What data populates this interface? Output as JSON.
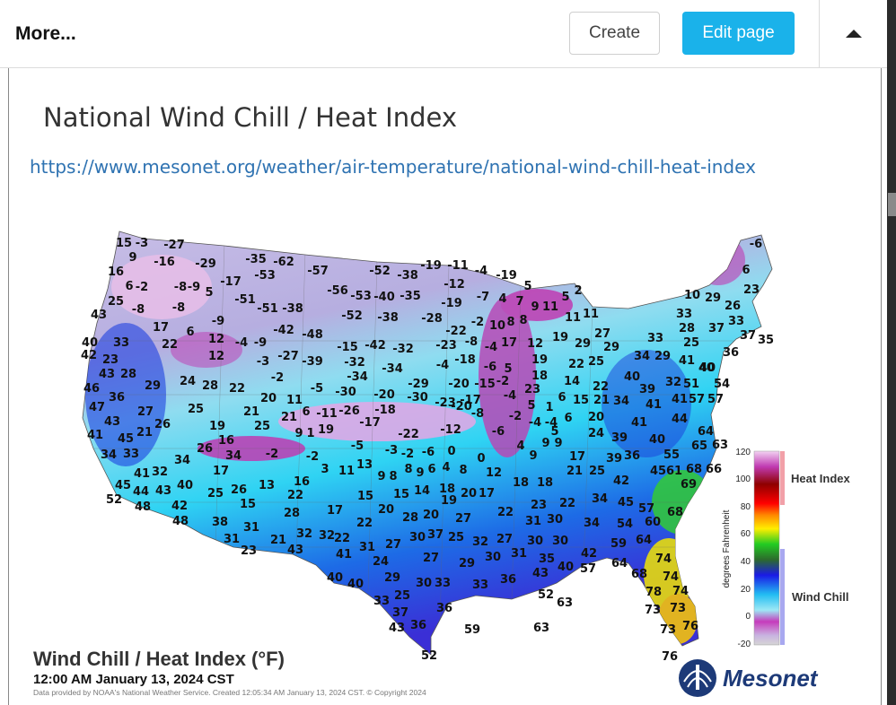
{
  "header": {
    "more_label": "More...",
    "create_label": "Create",
    "edit_label": "Edit page",
    "accent_color": "#1ab2ea"
  },
  "article": {
    "title": "National Wind Chill / Heat Index",
    "url": "https://www.mesonet.org/weather/air-temperature/national-wind-chill-heat-index"
  },
  "map": {
    "title": "Wind Chill / Heat Index (°F)",
    "timestamp": "12:00 AM January 13, 2024 CST",
    "credit": "Data provided by NOAA's National Weather Service. Created 12:05:34 AM January 13, 2024 CST. © Copyright 2024",
    "logo_text": "Mesonet",
    "legend": {
      "ticks": [
        "120",
        "100",
        "80",
        "60",
        "40",
        "20",
        "0",
        "-20"
      ],
      "axis_label": "degrees Fahrenheit",
      "heat_label": "Heat Index",
      "wind_label": "Wind Chill"
    },
    "labels": [
      [
        "15",
        138,
        270
      ],
      [
        "-3",
        158,
        270
      ],
      [
        "-27",
        194,
        272
      ],
      [
        "9",
        148,
        286
      ],
      [
        "-16",
        183,
        291
      ],
      [
        "-29",
        229,
        293
      ],
      [
        "-35",
        285,
        288
      ],
      [
        "-62",
        316,
        291
      ],
      [
        "-57",
        354,
        301
      ],
      [
        "-52",
        423,
        301
      ],
      [
        "-38",
        454,
        306
      ],
      [
        "-19",
        480,
        295
      ],
      [
        "-11",
        510,
        295
      ],
      [
        "-4",
        536,
        301
      ],
      [
        "-19",
        564,
        306
      ],
      [
        "-6",
        842,
        271
      ],
      [
        "16",
        129,
        302
      ],
      [
        "6",
        144,
        318
      ],
      [
        "-2",
        158,
        319
      ],
      [
        "-8",
        201,
        319
      ],
      [
        "-9",
        216,
        319
      ],
      [
        "5",
        233,
        325
      ],
      [
        "-17",
        257,
        313
      ],
      [
        "-53",
        295,
        306
      ],
      [
        "-56",
        376,
        323
      ],
      [
        "-53",
        402,
        329
      ],
      [
        "-40",
        428,
        330
      ],
      [
        "-35",
        457,
        329
      ],
      [
        "-12",
        506,
        316
      ],
      [
        "5",
        588,
        318
      ],
      [
        "2",
        644,
        323
      ],
      [
        "6",
        831,
        300
      ],
      [
        "23",
        837,
        322
      ],
      [
        "25",
        129,
        335
      ],
      [
        "-8",
        154,
        344
      ],
      [
        "-8",
        199,
        342
      ],
      [
        "-51",
        273,
        333
      ],
      [
        "-51",
        298,
        343
      ],
      [
        "-38",
        326,
        343
      ],
      [
        "-19",
        503,
        337
      ],
      [
        "-7",
        538,
        330
      ],
      [
        "4",
        560,
        332
      ],
      [
        "7",
        579,
        335
      ],
      [
        "9",
        596,
        341
      ],
      [
        "11",
        613,
        341
      ],
      [
        "5",
        630,
        330
      ],
      [
        "10",
        771,
        328
      ],
      [
        "29",
        794,
        331
      ],
      [
        "26",
        816,
        340
      ],
      [
        "43",
        110,
        350
      ],
      [
        "-9",
        243,
        357
      ],
      [
        "-52",
        392,
        351
      ],
      [
        "-38",
        432,
        353
      ],
      [
        "-28",
        481,
        354
      ],
      [
        "-2",
        532,
        358
      ],
      [
        "10",
        554,
        362
      ],
      [
        "8",
        569,
        358
      ],
      [
        "8",
        583,
        356
      ],
      [
        "11",
        638,
        353
      ],
      [
        "11",
        658,
        349
      ],
      [
        "33",
        762,
        349
      ],
      [
        "33",
        820,
        357
      ],
      [
        "17",
        179,
        364
      ],
      [
        "-42",
        316,
        367
      ],
      [
        "-48",
        348,
        372
      ],
      [
        "-22",
        508,
        368
      ],
      [
        "27",
        671,
        371
      ],
      [
        "28",
        765,
        365
      ],
      [
        "37",
        798,
        365
      ],
      [
        "37",
        833,
        373
      ],
      [
        "35",
        853,
        378
      ],
      [
        "6",
        212,
        369
      ],
      [
        "12",
        241,
        377
      ],
      [
        "40",
        100,
        381
      ],
      [
        "33",
        135,
        381
      ],
      [
        "22",
        189,
        383
      ],
      [
        "-4",
        269,
        381
      ],
      [
        "-9",
        290,
        381
      ],
      [
        "-15",
        387,
        386
      ],
      [
        "-42",
        418,
        384
      ],
      [
        "-32",
        449,
        388
      ],
      [
        "-23",
        497,
        384
      ],
      [
        "-8",
        525,
        380
      ],
      [
        "-4",
        547,
        386
      ],
      [
        "17",
        567,
        381
      ],
      [
        "12",
        596,
        382
      ],
      [
        "19",
        624,
        375
      ],
      [
        "29",
        649,
        382
      ],
      [
        "29",
        681,
        386
      ],
      [
        "33",
        730,
        376
      ],
      [
        "25",
        770,
        381
      ],
      [
        "42",
        99,
        395
      ],
      [
        "23",
        123,
        400
      ],
      [
        "12",
        241,
        396
      ],
      [
        "-3",
        293,
        402
      ],
      [
        "-27",
        321,
        396
      ],
      [
        "-39",
        348,
        402
      ],
      [
        "-32",
        395,
        403
      ],
      [
        "-4",
        493,
        406
      ],
      [
        "-18",
        518,
        400
      ],
      [
        "-6",
        546,
        408
      ],
      [
        "5",
        566,
        410
      ],
      [
        "19",
        601,
        400
      ],
      [
        "22",
        642,
        405
      ],
      [
        "25",
        664,
        402
      ],
      [
        "34",
        715,
        396
      ],
      [
        "29",
        738,
        396
      ],
      [
        "41",
        765,
        401
      ],
      [
        "36",
        814,
        392
      ],
      [
        "40",
        788,
        409
      ],
      [
        "43",
        119,
        416
      ],
      [
        "28",
        143,
        416
      ],
      [
        "-2",
        309,
        420
      ],
      [
        "-34",
        398,
        419
      ],
      [
        "-34",
        437,
        410
      ],
      [
        "-29",
        466,
        427
      ],
      [
        "-20",
        511,
        427
      ],
      [
        "-15",
        540,
        427
      ],
      [
        "-2",
        560,
        424
      ],
      [
        "18",
        601,
        418
      ],
      [
        "14",
        637,
        424
      ],
      [
        "22",
        669,
        430
      ],
      [
        "40",
        704,
        419
      ],
      [
        "39",
        721,
        433
      ],
      [
        "32",
        750,
        425
      ],
      [
        "51",
        770,
        427
      ],
      [
        "40",
        787,
        409
      ],
      [
        "54",
        804,
        427
      ],
      [
        "46",
        102,
        432
      ],
      [
        "29",
        170,
        429
      ],
      [
        "24",
        209,
        424
      ],
      [
        "28",
        234,
        429
      ],
      [
        "22",
        264,
        432
      ],
      [
        "-5",
        353,
        432
      ],
      [
        "-30",
        385,
        436
      ],
      [
        "-20",
        428,
        439
      ],
      [
        "-30",
        465,
        442
      ],
      [
        "-23",
        496,
        448
      ],
      [
        "-17",
        524,
        445
      ],
      [
        "-4",
        568,
        440
      ],
      [
        "23",
        593,
        433
      ],
      [
        "6",
        626,
        442
      ],
      [
        "15",
        647,
        445
      ],
      [
        "21",
        670,
        445
      ],
      [
        "34",
        692,
        446
      ],
      [
        "41",
        728,
        450
      ],
      [
        "41",
        757,
        444
      ],
      [
        "57",
        776,
        444
      ],
      [
        "57",
        797,
        444
      ],
      [
        "36",
        130,
        442
      ],
      [
        "20",
        299,
        443
      ],
      [
        "11",
        328,
        445
      ],
      [
        "-26",
        389,
        457
      ],
      [
        "-18",
        429,
        456
      ],
      [
        "-20",
        514,
        452
      ],
      [
        "-8",
        532,
        460
      ],
      [
        "5",
        592,
        451
      ],
      [
        "1",
        612,
        453
      ],
      [
        "44",
        757,
        466
      ],
      [
        "47",
        108,
        453
      ],
      [
        "27",
        162,
        458
      ],
      [
        "25",
        218,
        455
      ],
      [
        "21",
        280,
        458
      ],
      [
        "21",
        322,
        464
      ],
      [
        "6",
        341,
        458
      ],
      [
        "-11",
        364,
        460
      ],
      [
        "-2",
        574,
        463
      ],
      [
        "-4",
        596,
        470
      ],
      [
        "-4",
        614,
        470
      ],
      [
        "6",
        633,
        465
      ],
      [
        "20",
        664,
        464
      ],
      [
        "41",
        712,
        470
      ],
      [
        "43",
        125,
        469
      ],
      [
        "26",
        181,
        472
      ],
      [
        "19",
        242,
        474
      ],
      [
        "25",
        292,
        474
      ],
      [
        "19",
        363,
        478
      ],
      [
        "-17",
        412,
        470
      ],
      [
        "-12",
        502,
        478
      ],
      [
        "-6",
        555,
        480
      ],
      [
        "5",
        618,
        480
      ],
      [
        "24",
        664,
        482
      ],
      [
        "39",
        690,
        487
      ],
      [
        "40",
        732,
        489
      ],
      [
        "64",
        786,
        480
      ],
      [
        "41",
        106,
        484
      ],
      [
        "45",
        140,
        488
      ],
      [
        "21",
        161,
        481
      ],
      [
        "16",
        252,
        490
      ],
      [
        "9",
        333,
        482
      ],
      [
        "1",
        346,
        482
      ],
      [
        "-5",
        398,
        496
      ],
      [
        "-22",
        455,
        483
      ],
      [
        "4",
        580,
        496
      ],
      [
        "9",
        608,
        493
      ],
      [
        "9",
        622,
        493
      ],
      [
        "65",
        779,
        496
      ],
      [
        "63",
        802,
        495
      ],
      [
        "34",
        121,
        506
      ],
      [
        "33",
        146,
        505
      ],
      [
        "34",
        203,
        512
      ],
      [
        "26",
        228,
        499
      ],
      [
        "34",
        260,
        507
      ],
      [
        "-2",
        303,
        505
      ],
      [
        "-2",
        348,
        508
      ],
      [
        "-3",
        436,
        501
      ],
      [
        "-2",
        454,
        505
      ],
      [
        "-6",
        477,
        503
      ],
      [
        "0",
        503,
        502
      ],
      [
        "0",
        536,
        510
      ],
      [
        "9",
        594,
        507
      ],
      [
        "17",
        643,
        508
      ],
      [
        "39",
        684,
        510
      ],
      [
        "36",
        704,
        507
      ],
      [
        "55",
        748,
        506
      ],
      [
        "66",
        795,
        522
      ],
      [
        "41",
        158,
        527
      ],
      [
        "32",
        178,
        525
      ],
      [
        "17",
        246,
        524
      ],
      [
        "3",
        362,
        522
      ],
      [
        "11",
        386,
        524
      ],
      [
        "13",
        406,
        517
      ],
      [
        "9",
        425,
        530
      ],
      [
        "8",
        438,
        530
      ],
      [
        "8",
        455,
        522
      ],
      [
        "9",
        468,
        526
      ],
      [
        "6",
        481,
        522
      ],
      [
        "4",
        497,
        520
      ],
      [
        "8",
        516,
        523
      ],
      [
        "12",
        550,
        526
      ],
      [
        "18",
        580,
        537
      ],
      [
        "18",
        607,
        537
      ],
      [
        "21",
        640,
        524
      ],
      [
        "25",
        665,
        524
      ],
      [
        "42",
        692,
        535
      ],
      [
        "45",
        733,
        524
      ],
      [
        "61",
        751,
        524
      ],
      [
        "68",
        773,
        522
      ],
      [
        "69",
        767,
        539
      ],
      [
        "45",
        137,
        540
      ],
      [
        "44",
        157,
        547
      ],
      [
        "43",
        182,
        546
      ],
      [
        "40",
        206,
        540
      ],
      [
        "16",
        336,
        536
      ],
      [
        "22",
        329,
        551
      ],
      [
        "25",
        240,
        549
      ],
      [
        "26",
        266,
        545
      ],
      [
        "13",
        297,
        540
      ],
      [
        "18",
        498,
        544
      ],
      [
        "20",
        522,
        549
      ],
      [
        "17",
        542,
        549
      ],
      [
        "15",
        407,
        552
      ],
      [
        "15",
        447,
        550
      ],
      [
        "14",
        470,
        546
      ],
      [
        "34",
        668,
        555
      ],
      [
        "45",
        697,
        559
      ],
      [
        "57",
        720,
        566
      ],
      [
        "68",
        752,
        570
      ],
      [
        "52",
        127,
        556
      ],
      [
        "48",
        159,
        564
      ],
      [
        "42",
        200,
        563
      ],
      [
        "15",
        276,
        561
      ],
      [
        "19",
        500,
        557
      ],
      [
        "22",
        563,
        570
      ],
      [
        "23",
        600,
        562
      ],
      [
        "22",
        632,
        560
      ],
      [
        "48",
        201,
        580
      ],
      [
        "38",
        245,
        581
      ],
      [
        "28",
        325,
        571
      ],
      [
        "17",
        373,
        568
      ],
      [
        "22",
        406,
        582
      ],
      [
        "20",
        430,
        567
      ],
      [
        "28",
        457,
        576
      ],
      [
        "20",
        480,
        573
      ],
      [
        "27",
        516,
        577
      ],
      [
        "31",
        594,
        580
      ],
      [
        "30",
        618,
        578
      ],
      [
        "34",
        659,
        582
      ],
      [
        "54",
        696,
        583
      ],
      [
        "60",
        727,
        581
      ],
      [
        "31",
        280,
        587
      ],
      [
        "32",
        339,
        594
      ],
      [
        "32",
        364,
        596
      ],
      [
        "22",
        381,
        599
      ],
      [
        "30",
        465,
        598
      ],
      [
        "37",
        485,
        595
      ],
      [
        "25",
        508,
        598
      ],
      [
        "32",
        535,
        603
      ],
      [
        "27",
        562,
        600
      ],
      [
        "30",
        596,
        602
      ],
      [
        "30",
        624,
        602
      ],
      [
        "59",
        689,
        605
      ],
      [
        "64",
        717,
        601
      ],
      [
        "31",
        258,
        600
      ],
      [
        "21",
        310,
        601
      ],
      [
        "23",
        277,
        613
      ],
      [
        "43",
        329,
        612
      ],
      [
        "41",
        383,
        617
      ],
      [
        "31",
        409,
        609
      ],
      [
        "27",
        438,
        606
      ],
      [
        "24",
        424,
        625
      ],
      [
        "27",
        480,
        621
      ],
      [
        "29",
        520,
        627
      ],
      [
        "30",
        549,
        620
      ],
      [
        "31",
        578,
        616
      ],
      [
        "35",
        609,
        622
      ],
      [
        "42",
        656,
        616
      ],
      [
        "64",
        690,
        627
      ],
      [
        "74",
        739,
        622
      ],
      [
        "40",
        373,
        643
      ],
      [
        "40",
        396,
        650
      ],
      [
        "29",
        437,
        643
      ],
      [
        "30",
        472,
        649
      ],
      [
        "33",
        493,
        649
      ],
      [
        "33",
        535,
        651
      ],
      [
        "36",
        566,
        645
      ],
      [
        "43",
        602,
        638
      ],
      [
        "40",
        630,
        631
      ],
      [
        "57",
        655,
        633
      ],
      [
        "68",
        712,
        639
      ],
      [
        "74",
        747,
        642
      ],
      [
        "33",
        425,
        669
      ],
      [
        "25",
        448,
        663
      ],
      [
        "37",
        446,
        682
      ],
      [
        "52",
        608,
        662
      ],
      [
        "63",
        629,
        671
      ],
      [
        "78",
        728,
        659
      ],
      [
        "74",
        758,
        658
      ],
      [
        "43",
        442,
        699
      ],
      [
        "36",
        466,
        696
      ],
      [
        "36",
        495,
        677
      ],
      [
        "59",
        526,
        701
      ],
      [
        "63",
        603,
        699
      ],
      [
        "73",
        727,
        679
      ],
      [
        "73",
        755,
        677
      ],
      [
        "73",
        744,
        701
      ],
      [
        "76",
        769,
        697
      ],
      [
        "52",
        478,
        730
      ],
      [
        "76",
        746,
        731
      ]
    ]
  }
}
